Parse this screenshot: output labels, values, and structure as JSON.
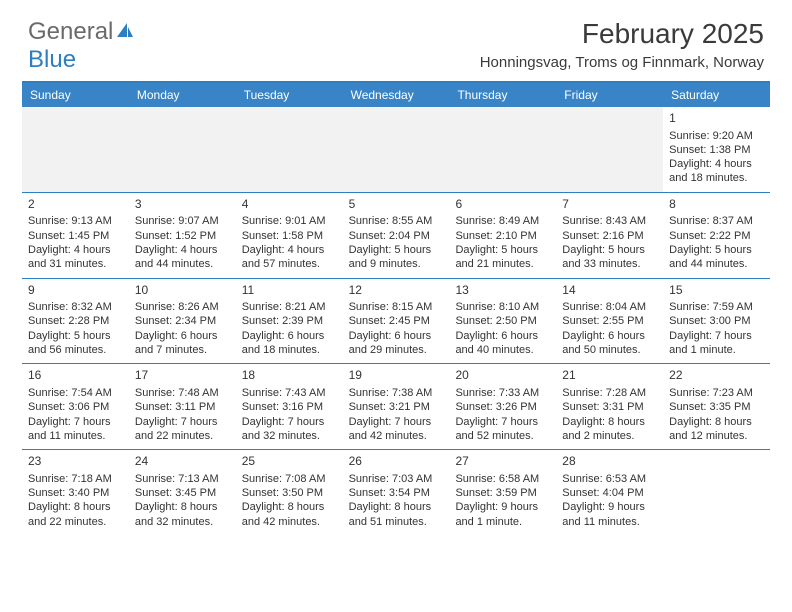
{
  "logo": {
    "text1": "General",
    "text2": "Blue"
  },
  "title": "February 2025",
  "location": "Honningsvag, Troms og Finnmark, Norway",
  "dow_header_bg": "#3884c7",
  "dow_header_fg": "#ffffff",
  "rule_color": "#2d7fc1",
  "empty_bg": "#f2f2f2",
  "dow": [
    "Sunday",
    "Monday",
    "Tuesday",
    "Wednesday",
    "Thursday",
    "Friday",
    "Saturday"
  ],
  "weeks": [
    [
      null,
      null,
      null,
      null,
      null,
      null,
      {
        "n": "1",
        "sr": "Sunrise: 9:20 AM",
        "ss": "Sunset: 1:38 PM",
        "d1": "Daylight: 4 hours",
        "d2": "and 18 minutes."
      }
    ],
    [
      {
        "n": "2",
        "sr": "Sunrise: 9:13 AM",
        "ss": "Sunset: 1:45 PM",
        "d1": "Daylight: 4 hours",
        "d2": "and 31 minutes."
      },
      {
        "n": "3",
        "sr": "Sunrise: 9:07 AM",
        "ss": "Sunset: 1:52 PM",
        "d1": "Daylight: 4 hours",
        "d2": "and 44 minutes."
      },
      {
        "n": "4",
        "sr": "Sunrise: 9:01 AM",
        "ss": "Sunset: 1:58 PM",
        "d1": "Daylight: 4 hours",
        "d2": "and 57 minutes."
      },
      {
        "n": "5",
        "sr": "Sunrise: 8:55 AM",
        "ss": "Sunset: 2:04 PM",
        "d1": "Daylight: 5 hours",
        "d2": "and 9 minutes."
      },
      {
        "n": "6",
        "sr": "Sunrise: 8:49 AM",
        "ss": "Sunset: 2:10 PM",
        "d1": "Daylight: 5 hours",
        "d2": "and 21 minutes."
      },
      {
        "n": "7",
        "sr": "Sunrise: 8:43 AM",
        "ss": "Sunset: 2:16 PM",
        "d1": "Daylight: 5 hours",
        "d2": "and 33 minutes."
      },
      {
        "n": "8",
        "sr": "Sunrise: 8:37 AM",
        "ss": "Sunset: 2:22 PM",
        "d1": "Daylight: 5 hours",
        "d2": "and 44 minutes."
      }
    ],
    [
      {
        "n": "9",
        "sr": "Sunrise: 8:32 AM",
        "ss": "Sunset: 2:28 PM",
        "d1": "Daylight: 5 hours",
        "d2": "and 56 minutes."
      },
      {
        "n": "10",
        "sr": "Sunrise: 8:26 AM",
        "ss": "Sunset: 2:34 PM",
        "d1": "Daylight: 6 hours",
        "d2": "and 7 minutes."
      },
      {
        "n": "11",
        "sr": "Sunrise: 8:21 AM",
        "ss": "Sunset: 2:39 PM",
        "d1": "Daylight: 6 hours",
        "d2": "and 18 minutes."
      },
      {
        "n": "12",
        "sr": "Sunrise: 8:15 AM",
        "ss": "Sunset: 2:45 PM",
        "d1": "Daylight: 6 hours",
        "d2": "and 29 minutes."
      },
      {
        "n": "13",
        "sr": "Sunrise: 8:10 AM",
        "ss": "Sunset: 2:50 PM",
        "d1": "Daylight: 6 hours",
        "d2": "and 40 minutes."
      },
      {
        "n": "14",
        "sr": "Sunrise: 8:04 AM",
        "ss": "Sunset: 2:55 PM",
        "d1": "Daylight: 6 hours",
        "d2": "and 50 minutes."
      },
      {
        "n": "15",
        "sr": "Sunrise: 7:59 AM",
        "ss": "Sunset: 3:00 PM",
        "d1": "Daylight: 7 hours",
        "d2": "and 1 minute."
      }
    ],
    [
      {
        "n": "16",
        "sr": "Sunrise: 7:54 AM",
        "ss": "Sunset: 3:06 PM",
        "d1": "Daylight: 7 hours",
        "d2": "and 11 minutes."
      },
      {
        "n": "17",
        "sr": "Sunrise: 7:48 AM",
        "ss": "Sunset: 3:11 PM",
        "d1": "Daylight: 7 hours",
        "d2": "and 22 minutes."
      },
      {
        "n": "18",
        "sr": "Sunrise: 7:43 AM",
        "ss": "Sunset: 3:16 PM",
        "d1": "Daylight: 7 hours",
        "d2": "and 32 minutes."
      },
      {
        "n": "19",
        "sr": "Sunrise: 7:38 AM",
        "ss": "Sunset: 3:21 PM",
        "d1": "Daylight: 7 hours",
        "d2": "and 42 minutes."
      },
      {
        "n": "20",
        "sr": "Sunrise: 7:33 AM",
        "ss": "Sunset: 3:26 PM",
        "d1": "Daylight: 7 hours",
        "d2": "and 52 minutes."
      },
      {
        "n": "21",
        "sr": "Sunrise: 7:28 AM",
        "ss": "Sunset: 3:31 PM",
        "d1": "Daylight: 8 hours",
        "d2": "and 2 minutes."
      },
      {
        "n": "22",
        "sr": "Sunrise: 7:23 AM",
        "ss": "Sunset: 3:35 PM",
        "d1": "Daylight: 8 hours",
        "d2": "and 12 minutes."
      }
    ],
    [
      {
        "n": "23",
        "sr": "Sunrise: 7:18 AM",
        "ss": "Sunset: 3:40 PM",
        "d1": "Daylight: 8 hours",
        "d2": "and 22 minutes."
      },
      {
        "n": "24",
        "sr": "Sunrise: 7:13 AM",
        "ss": "Sunset: 3:45 PM",
        "d1": "Daylight: 8 hours",
        "d2": "and 32 minutes."
      },
      {
        "n": "25",
        "sr": "Sunrise: 7:08 AM",
        "ss": "Sunset: 3:50 PM",
        "d1": "Daylight: 8 hours",
        "d2": "and 42 minutes."
      },
      {
        "n": "26",
        "sr": "Sunrise: 7:03 AM",
        "ss": "Sunset: 3:54 PM",
        "d1": "Daylight: 8 hours",
        "d2": "and 51 minutes."
      },
      {
        "n": "27",
        "sr": "Sunrise: 6:58 AM",
        "ss": "Sunset: 3:59 PM",
        "d1": "Daylight: 9 hours",
        "d2": "and 1 minute."
      },
      {
        "n": "28",
        "sr": "Sunrise: 6:53 AM",
        "ss": "Sunset: 4:04 PM",
        "d1": "Daylight: 9 hours",
        "d2": "and 11 minutes."
      },
      null
    ]
  ]
}
